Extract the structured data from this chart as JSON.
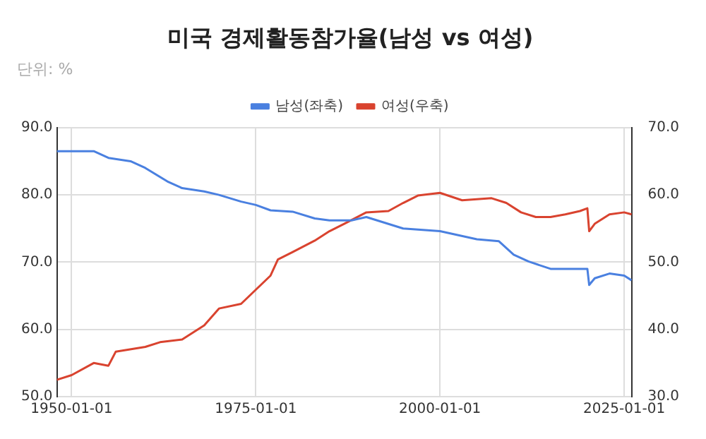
{
  "chart_data": {
    "type": "line",
    "title": "미국 경제활동참가율(남성 vs 여성)",
    "subtitle": "단위: %",
    "legend": "top",
    "grid": true,
    "marker": "none",
    "line_style": "solid",
    "xlim": [
      "1948-01",
      "2026-02"
    ],
    "xticks": [
      "1950-01-01",
      "1975-01-01",
      "2000-01-01",
      "2025-01-01"
    ],
    "ylim": [
      50,
      90
    ],
    "yticks": [
      {
        "value": 50,
        "label": "50.0"
      },
      {
        "value": 60,
        "label": "60.0"
      },
      {
        "value": 70,
        "label": "70.0"
      },
      {
        "value": 80,
        "label": "80.0"
      },
      {
        "value": 90,
        "label": "90.0"
      }
    ],
    "y2lim": [
      30,
      70
    ],
    "y2ticks": [
      {
        "value": 30,
        "label": "30.0"
      },
      {
        "value": 40,
        "label": "40.0"
      },
      {
        "value": 50,
        "label": "50.0"
      },
      {
        "value": 60,
        "label": "60.0"
      },
      {
        "value": 70,
        "label": "70.0"
      }
    ],
    "series": [
      {
        "name": "남성(좌축)",
        "color": "#4a80e0",
        "x": [
          "1948-01",
          "1950-01",
          "1953-01",
          "1955-01",
          "1958-01",
          "1960-01",
          "1963-01",
          "1965-01",
          "1968-01",
          "1970-01",
          "1973-01",
          "1975-01",
          "1977-01",
          "1980-01",
          "1983-01",
          "1985-01",
          "1988-01",
          "1990-01",
          "1995-01",
          "2000-01",
          "2005-01",
          "2008-01",
          "2010-01",
          "2012-01",
          "2015-01",
          "2019-01",
          "2020-01",
          "2020-04",
          "2021-01",
          "2023-01",
          "2025-01",
          "2026-01"
        ],
        "values": [
          86.5,
          86.5,
          86.5,
          85.5,
          85,
          84,
          82,
          81,
          80.5,
          80,
          79,
          78.5,
          77.7,
          77.5,
          76.5,
          76.2,
          76.2,
          76.7,
          75,
          74.6,
          73.4,
          73.1,
          71.1,
          70.1,
          69,
          69,
          69,
          66.6,
          67.6,
          68.3,
          68,
          67.3
        ]
      },
      {
        "name": "여성(우축)",
        "color": "#d9432f",
        "axis": "y2",
        "x": [
          "1948-01",
          "1950-01",
          "1953-01",
          "1955-01",
          "1956-01",
          "1960-01",
          "1962-01",
          "1965-01",
          "1968-01",
          "1970-01",
          "1973-01",
          "1975-01",
          "1977-01",
          "1978-01",
          "1980-01",
          "1983-01",
          "1985-01",
          "1987-01",
          "1990-01",
          "1993-01",
          "1995-01",
          "1997-01",
          "2000-01",
          "2003-01",
          "2007-01",
          "2009-01",
          "2011-01",
          "2013-01",
          "2015-01",
          "2017-01",
          "2019-01",
          "2020-01",
          "2020-04",
          "2021-01",
          "2023-01",
          "2025-01",
          "2026-01"
        ],
        "values": [
          32.5,
          33.2,
          35,
          34.6,
          36.7,
          37.4,
          38.1,
          38.5,
          40.6,
          43.1,
          43.8,
          45.9,
          48,
          50.4,
          51.5,
          53.2,
          54.6,
          55.7,
          57.4,
          57.6,
          58.8,
          59.9,
          60.3,
          59.2,
          59.5,
          58.8,
          57.4,
          56.7,
          56.7,
          57.1,
          57.6,
          58,
          54.6,
          55.7,
          57.1,
          57.4,
          57.1
        ]
      }
    ]
  }
}
